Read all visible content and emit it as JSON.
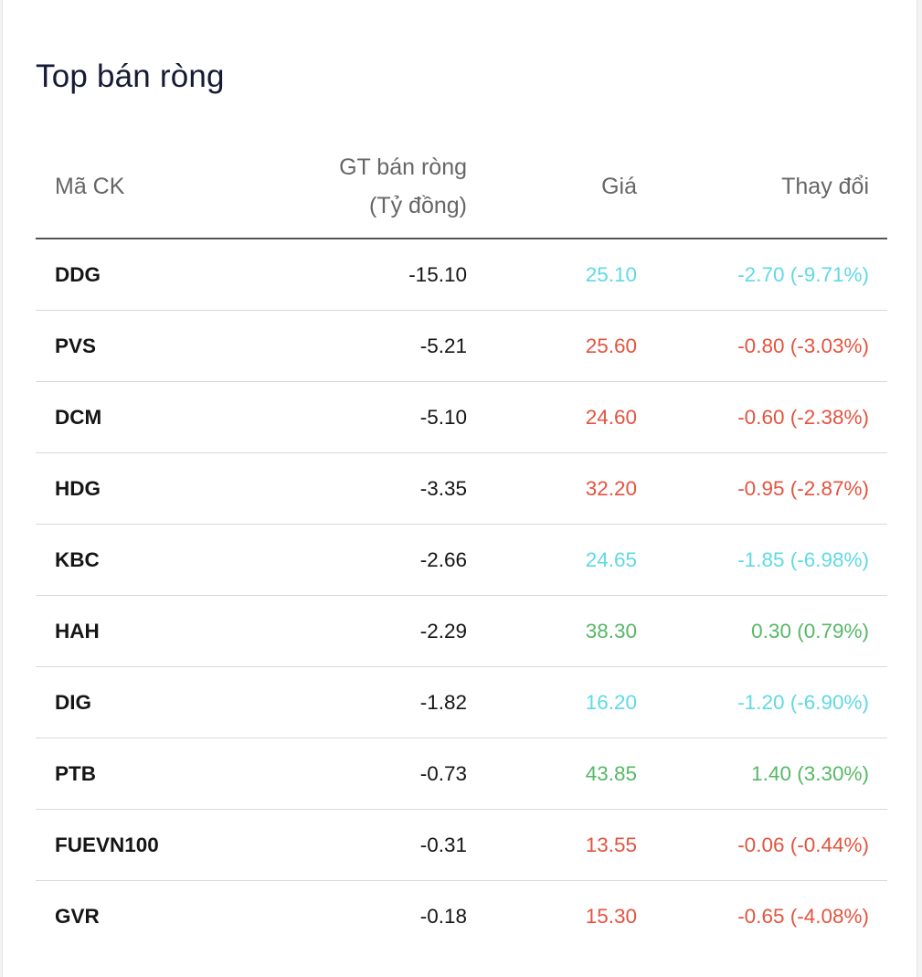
{
  "widget": {
    "title": "Top bán ròng"
  },
  "table": {
    "headers": {
      "symbol": "Mã CK",
      "net_value_line1": "GT bán ròng",
      "net_value_line2": "(Tỷ đồng)",
      "price": "Giá",
      "change": "Thay đổi"
    },
    "rows": [
      {
        "symbol": "DDG",
        "net_value": "-15.10",
        "price": "25.10",
        "change": "-2.70 (-9.71%)",
        "status": "floor"
      },
      {
        "symbol": "PVS",
        "net_value": "-5.21",
        "price": "25.60",
        "change": "-0.80 (-3.03%)",
        "status": "down"
      },
      {
        "symbol": "DCM",
        "net_value": "-5.10",
        "price": "24.60",
        "change": "-0.60 (-2.38%)",
        "status": "down"
      },
      {
        "symbol": "HDG",
        "net_value": "-3.35",
        "price": "32.20",
        "change": "-0.95 (-2.87%)",
        "status": "down"
      },
      {
        "symbol": "KBC",
        "net_value": "-2.66",
        "price": "24.65",
        "change": "-1.85 (-6.98%)",
        "status": "floor"
      },
      {
        "symbol": "HAH",
        "net_value": "-2.29",
        "price": "38.30",
        "change": "0.30 (0.79%)",
        "status": "up"
      },
      {
        "symbol": "DIG",
        "net_value": "-1.82",
        "price": "16.20",
        "change": "-1.20 (-6.90%)",
        "status": "floor"
      },
      {
        "symbol": "PTB",
        "net_value": "-0.73",
        "price": "43.85",
        "change": "1.40 (3.30%)",
        "status": "up"
      },
      {
        "symbol": "FUEVN100",
        "net_value": "-0.31",
        "price": "13.55",
        "change": "-0.06 (-0.44%)",
        "status": "down"
      },
      {
        "symbol": "GVR",
        "net_value": "-0.18",
        "price": "15.30",
        "change": "-0.65 (-4.08%)",
        "status": "down"
      }
    ]
  },
  "colors": {
    "floor": "#5fd9e6",
    "down": "#e5533f",
    "up": "#57b866",
    "title": "#151a35"
  }
}
